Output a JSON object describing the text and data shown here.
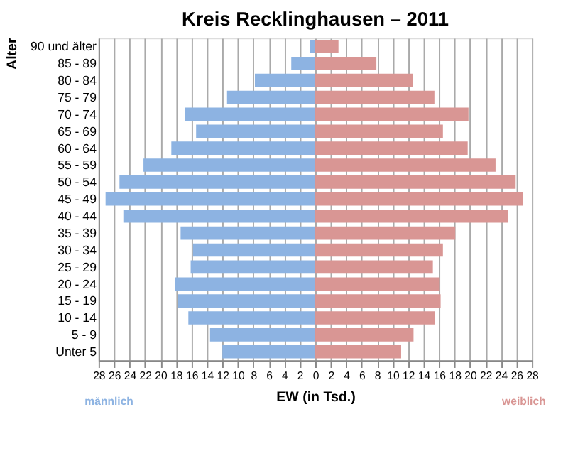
{
  "chart_data": {
    "type": "bar",
    "orientation": "horizontal",
    "stacked": true,
    "title": "Kreis Recklinghausen – 2011",
    "xlabel": "EW (in Tsd.)",
    "ylabel": "Alter",
    "categories": [
      "90 und älter",
      "85 - 89",
      "80 - 84",
      "75 - 79",
      "70 - 74",
      "65 - 69",
      "60 - 64",
      "55 - 59",
      "50 - 54",
      "45 - 49",
      "40 - 44",
      "35 - 39",
      "30 - 34",
      "25 - 29",
      "20 - 24",
      "15 - 19",
      "10 - 14",
      "5 - 9",
      "Unter 5"
    ],
    "series": [
      {
        "name": "männlich",
        "color": "#8db3e2",
        "values": [
          -0.7,
          -3.1,
          -7.8,
          -11.4,
          -16.8,
          -15.4,
          -18.6,
          -22.2,
          -25.3,
          -27.1,
          -24.8,
          -17.4,
          -15.8,
          -16.1,
          -18.1,
          -17.8,
          -16.4,
          -13.6,
          -12.0
        ]
      },
      {
        "name": "weiblich",
        "color": "#d99694",
        "values": [
          3.0,
          7.9,
          12.6,
          15.4,
          19.8,
          16.5,
          19.7,
          23.3,
          25.9,
          26.8,
          24.9,
          18.1,
          16.5,
          15.2,
          16.1,
          16.2,
          15.5,
          12.7,
          11.1
        ]
      }
    ],
    "xlim": [
      -28,
      28
    ],
    "xticks": [
      {
        "value": -28,
        "label": "28"
      },
      {
        "value": -26,
        "label": "26"
      },
      {
        "value": -24,
        "label": "24"
      },
      {
        "value": -22,
        "label": "22"
      },
      {
        "value": -20,
        "label": "20"
      },
      {
        "value": -18,
        "label": "18"
      },
      {
        "value": -16,
        "label": "16"
      },
      {
        "value": -14,
        "label": "14"
      },
      {
        "value": -12,
        "label": "12"
      },
      {
        "value": -10,
        "label": "10"
      },
      {
        "value": -8,
        "label": "8"
      },
      {
        "value": -6,
        "label": "6"
      },
      {
        "value": -4,
        "label": "4"
      },
      {
        "value": -2,
        "label": "2"
      },
      0,
      2,
      4,
      6,
      8,
      10,
      12,
      14,
      16,
      18,
      20,
      22,
      24,
      26,
      28
    ],
    "grid": "x",
    "legend": false
  }
}
